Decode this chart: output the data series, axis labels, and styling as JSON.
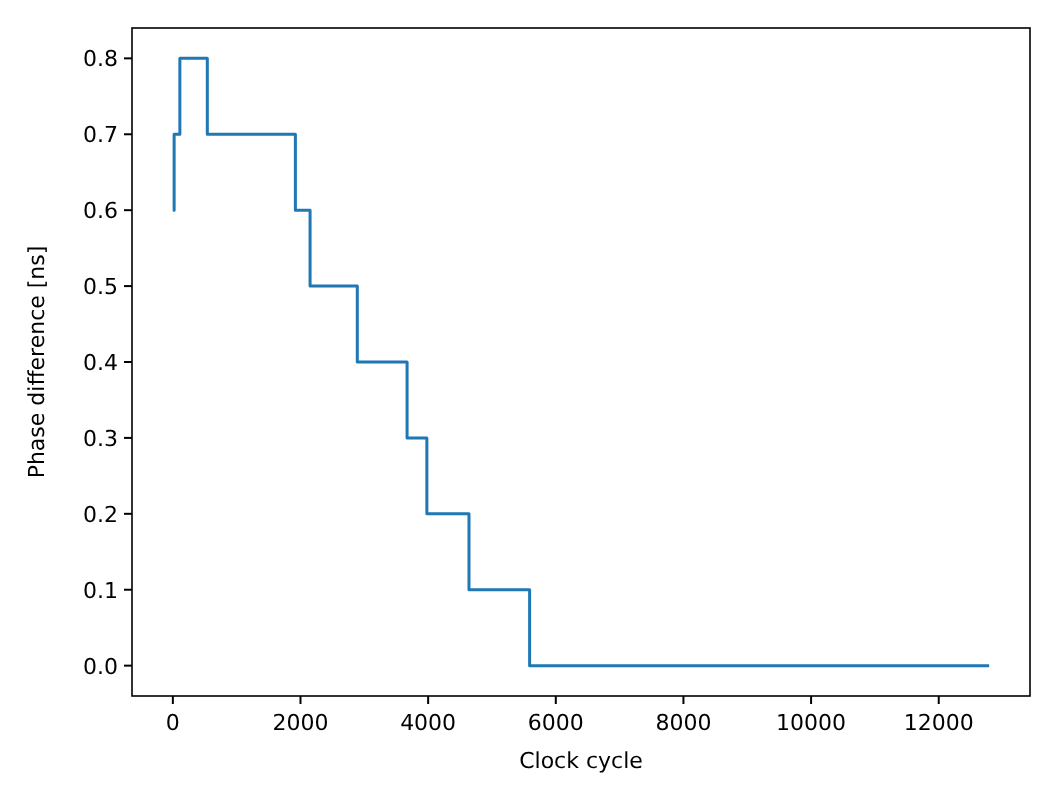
{
  "chart_data": {
    "type": "step",
    "xlabel": "Clock cycle",
    "ylabel": "Phase difference [ns]",
    "x": [
      0,
      20,
      110,
      540,
      1920,
      2150,
      2890,
      3670,
      3980,
      4640,
      5590,
      12790
    ],
    "series": [
      {
        "color": "#1f77b4",
        "values": [
          0.6,
          0.7,
          0.8,
          0.7,
          0.6,
          0.5,
          0.4,
          0.3,
          0.2,
          0.1,
          0.0,
          0.0
        ]
      }
    ],
    "xlim": [
      -640,
      13430
    ],
    "xticks": [
      0,
      2000,
      4000,
      6000,
      8000,
      10000,
      12000
    ],
    "ylim": [
      -0.04,
      0.84
    ],
    "yticks": [
      {
        "value": 0,
        "label": "0.0"
      },
      0.1,
      0.2,
      0.3,
      0.4,
      0.5,
      0.6,
      0.7,
      0.8
    ],
    "grid": false
  }
}
